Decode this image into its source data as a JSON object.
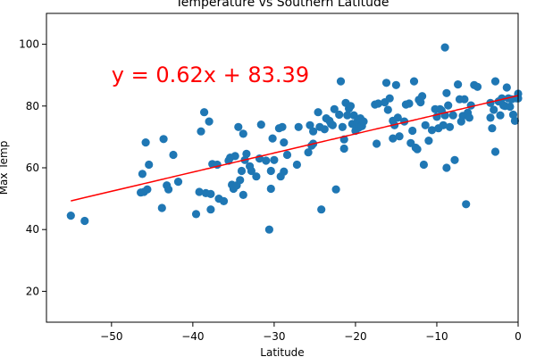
{
  "chart_data": {
    "type": "scatter",
    "title": "Temperature vs Southern Latitude",
    "xlabel": "Latitude",
    "ylabel": "Max Temp",
    "xlim": [
      -58,
      0
    ],
    "ylim": [
      10,
      110
    ],
    "xticks": [
      -50,
      -40,
      -30,
      -20,
      -10,
      0
    ],
    "yticks": [
      20,
      40,
      60,
      80,
      100
    ],
    "grid": false,
    "point_color": "#1f77b4",
    "line_color": "#ff0000",
    "annotation": {
      "text": "y = 0.62x + 83.39",
      "x": -50,
      "y": 90,
      "color": "#ff0000"
    },
    "regression": {
      "slope": 0.62,
      "intercept": 83.39,
      "x_range": [
        -55,
        0
      ]
    },
    "points": [
      [
        -55,
        44.5
      ],
      [
        -53.3,
        42.8
      ],
      [
        -46.4,
        52
      ],
      [
        -46.2,
        58
      ],
      [
        -46,
        52.2
      ],
      [
        -45.8,
        68.2
      ],
      [
        -45.6,
        53
      ],
      [
        -45.4,
        61
      ],
      [
        -43.8,
        47
      ],
      [
        -43.6,
        69.3
      ],
      [
        -43.2,
        54.3
      ],
      [
        -43,
        53
      ],
      [
        -42.4,
        64.2
      ],
      [
        -41.8,
        55.5
      ],
      [
        -39.6,
        45
      ],
      [
        -39.2,
        52.2
      ],
      [
        -39,
        71.8
      ],
      [
        -38.6,
        78
      ],
      [
        -38.4,
        51.8
      ],
      [
        -38,
        75
      ],
      [
        -37.8,
        51.5
      ],
      [
        -37.8,
        46.5
      ],
      [
        -37.6,
        61.2
      ],
      [
        -37,
        61
      ],
      [
        -36.8,
        50
      ],
      [
        -36.2,
        49.2
      ],
      [
        -35.6,
        62.3
      ],
      [
        -35.4,
        63.3
      ],
      [
        -35.2,
        54.5
      ],
      [
        -35,
        53.2
      ],
      [
        -34.8,
        63.8
      ],
      [
        -34.6,
        54.3
      ],
      [
        -34.4,
        73.2
      ],
      [
        -34.2,
        56
      ],
      [
        -34,
        59
      ],
      [
        -33.8,
        51.2
      ],
      [
        -33.6,
        62.5
      ],
      [
        -33.8,
        71
      ],
      [
        -33.4,
        64.5
      ],
      [
        -33,
        60.5
      ],
      [
        -32.8,
        59
      ],
      [
        -32.2,
        57.2
      ],
      [
        -31.8,
        63
      ],
      [
        -31.6,
        74
      ],
      [
        -31,
        62.3
      ],
      [
        -30.6,
        40
      ],
      [
        -30.4,
        53.2
      ],
      [
        -30.4,
        59
      ],
      [
        -30.2,
        69.5
      ],
      [
        -30,
        62.5
      ],
      [
        -29.4,
        72.8
      ],
      [
        -29.2,
        57.2
      ],
      [
        -29,
        73.2
      ],
      [
        -28.8,
        68.2
      ],
      [
        -28.8,
        58.8
      ],
      [
        -28.4,
        64.2
      ],
      [
        -27.2,
        61
      ],
      [
        -27,
        73.2
      ],
      [
        -25.8,
        65
      ],
      [
        -25.6,
        73.8
      ],
      [
        -25.4,
        67.2
      ],
      [
        -25.2,
        67.8
      ],
      [
        -25.2,
        71.8
      ],
      [
        -24.6,
        78
      ],
      [
        -24.4,
        73.2
      ],
      [
        -24.2,
        46.5
      ],
      [
        -23.8,
        72.5
      ],
      [
        -23.6,
        76
      ],
      [
        -23.2,
        75.2
      ],
      [
        -23,
        74.2
      ],
      [
        -22.8,
        73.8
      ],
      [
        -22.6,
        79
      ],
      [
        -22.4,
        53
      ],
      [
        -22,
        77.2
      ],
      [
        -21.8,
        88
      ],
      [
        -21.6,
        73.2
      ],
      [
        -21.4,
        69.2
      ],
      [
        -21.4,
        66.2
      ],
      [
        -21.2,
        81
      ],
      [
        -21,
        77
      ],
      [
        -20.8,
        79.2
      ],
      [
        -20.6,
        80
      ],
      [
        -20.4,
        74.2
      ],
      [
        -20.2,
        77
      ],
      [
        -20,
        72
      ],
      [
        -19.8,
        74.8
      ],
      [
        -19.6,
        73
      ],
      [
        -19.4,
        76
      ],
      [
        -19.2,
        73.5
      ],
      [
        -19,
        75
      ],
      [
        -17.6,
        80.5
      ],
      [
        -17.4,
        67.8
      ],
      [
        -17.2,
        80.8
      ],
      [
        -16.4,
        81.2
      ],
      [
        -16.2,
        87.5
      ],
      [
        -16,
        78.8
      ],
      [
        -15.8,
        82.5
      ],
      [
        -15.4,
        69.5
      ],
      [
        -15.4,
        75.2
      ],
      [
        -15.2,
        73.8
      ],
      [
        -15,
        86.8
      ],
      [
        -14.8,
        76.2
      ],
      [
        -14.6,
        70.2
      ],
      [
        -14,
        75
      ],
      [
        -13.8,
        80.5
      ],
      [
        -13.4,
        80.8
      ],
      [
        -13.2,
        68
      ],
      [
        -13,
        72
      ],
      [
        -12.8,
        88
      ],
      [
        -12.6,
        66.5
      ],
      [
        -12.4,
        66
      ],
      [
        -12.2,
        82
      ],
      [
        -12,
        81.2
      ],
      [
        -11.8,
        83.2
      ],
      [
        -11.6,
        61
      ],
      [
        -11.4,
        73.8
      ],
      [
        -11,
        68.8
      ],
      [
        -10.6,
        72.2
      ],
      [
        -10.2,
        79
      ],
      [
        -10,
        76.5
      ],
      [
        -9.8,
        72.8
      ],
      [
        -9.6,
        79
      ],
      [
        -9.4,
        78.5
      ],
      [
        -9.2,
        73.8
      ],
      [
        -9,
        77
      ],
      [
        -9,
        99
      ],
      [
        -8.8,
        84.2
      ],
      [
        -8.8,
        60
      ],
      [
        -8.6,
        80.2
      ],
      [
        -8.4,
        73.2
      ],
      [
        -8,
        77
      ],
      [
        -7.8,
        62.5
      ],
      [
        -7.4,
        87
      ],
      [
        -7.2,
        82.2
      ],
      [
        -7,
        75
      ],
      [
        -6.8,
        76.8
      ],
      [
        -6.6,
        82.2
      ],
      [
        -6.4,
        48.2
      ],
      [
        -6.2,
        77.8
      ],
      [
        -6,
        76.2
      ],
      [
        -5.8,
        80.2
      ],
      [
        -5.4,
        86.8
      ],
      [
        -5,
        86.2
      ],
      [
        -3.4,
        81
      ],
      [
        -3.4,
        76.2
      ],
      [
        -3.2,
        72.8
      ],
      [
        -3,
        78.8
      ],
      [
        -2.8,
        88
      ],
      [
        -2.8,
        65.2
      ],
      [
        -2.4,
        81.5
      ],
      [
        -2.2,
        77
      ],
      [
        -2,
        82.5
      ],
      [
        -1.8,
        80.2
      ],
      [
        -1.6,
        80
      ],
      [
        -1.4,
        86
      ],
      [
        -1.2,
        82.5
      ],
      [
        -1,
        79.8
      ],
      [
        -0.8,
        82.2
      ],
      [
        -0.6,
        77.2
      ],
      [
        -0.4,
        75.2
      ],
      [
        -0.2,
        82.5
      ],
      [
        0,
        84
      ],
      [
        0,
        82.5
      ]
    ]
  }
}
